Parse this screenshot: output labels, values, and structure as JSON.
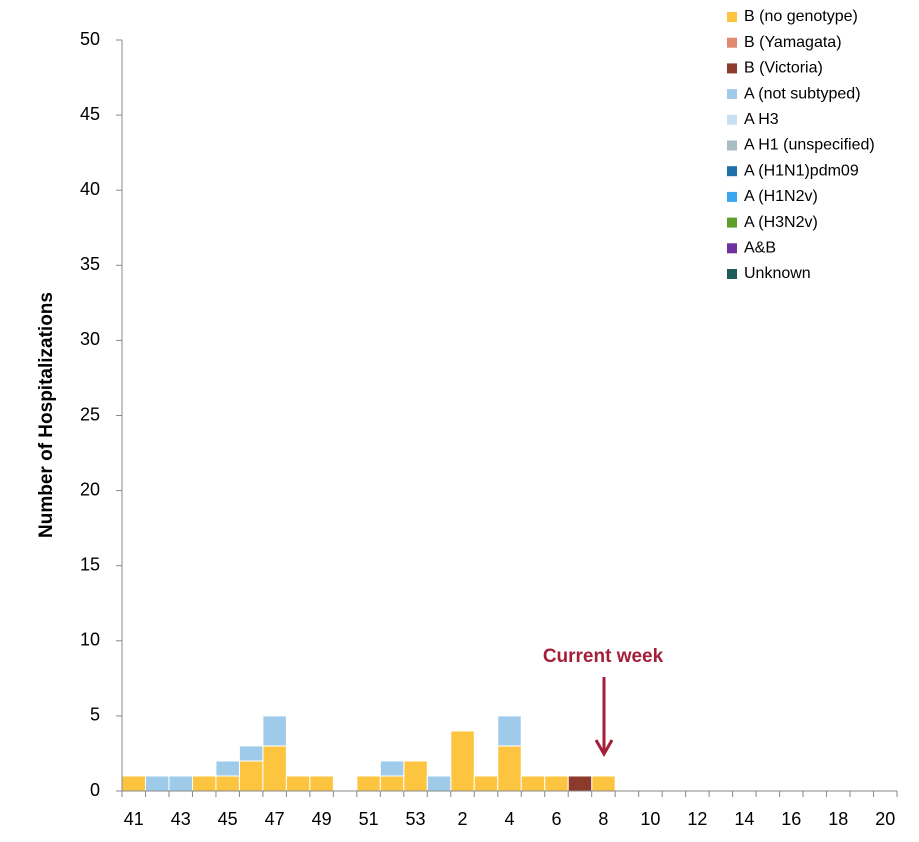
{
  "chart_data": {
    "type": "stacked_bar",
    "y_label": "Number of Hospitalizations",
    "annotation": "Current week",
    "categories": [
      "41",
      null,
      "43",
      null,
      "45",
      null,
      "47",
      null,
      "49",
      null,
      "51",
      null,
      "53",
      null,
      "2",
      null,
      "4",
      null,
      "6",
      null,
      "8",
      null,
      "10",
      null,
      "12",
      null,
      "14",
      null,
      "16",
      null,
      "18",
      null,
      "20"
    ],
    "ylim": [
      0,
      50
    ],
    "yticks": [
      0,
      5,
      10,
      15,
      20,
      25,
      30,
      35,
      40,
      45,
      50
    ],
    "series": [
      {
        "name": "B (no genotype)",
        "color": "#fdc53f",
        "values": [
          1,
          0,
          0,
          1,
          1,
          2,
          3,
          1,
          1,
          0,
          1,
          1,
          2,
          0,
          4,
          1,
          3,
          1,
          1,
          0,
          1,
          0,
          0,
          0,
          0,
          0,
          0,
          0,
          0,
          0,
          0,
          0,
          0
        ]
      },
      {
        "name": "B (Yamagata)",
        "color": "#e08a70",
        "values": [
          0,
          0,
          0,
          0,
          0,
          0,
          0,
          0,
          0,
          0,
          0,
          0,
          0,
          0,
          0,
          0,
          0,
          0,
          0,
          0,
          0,
          0,
          0,
          0,
          0,
          0,
          0,
          0,
          0,
          0,
          0,
          0,
          0
        ]
      },
      {
        "name": "B (Victoria)",
        "color": "#8c3a2b",
        "values": [
          0,
          0,
          0,
          0,
          0,
          0,
          0,
          0,
          0,
          0,
          0,
          0,
          0,
          0,
          0,
          0,
          0,
          0,
          0,
          1,
          0,
          0,
          0,
          0,
          0,
          0,
          0,
          0,
          0,
          0,
          0,
          0,
          0
        ]
      },
      {
        "name": "A (not subtyped)",
        "color": "#9ecbea",
        "values": [
          0,
          1,
          1,
          0,
          1,
          1,
          2,
          0,
          0,
          0,
          0,
          1,
          0,
          1,
          0,
          0,
          2,
          0,
          0,
          0,
          0,
          0,
          0,
          0,
          0,
          0,
          0,
          0,
          0,
          0,
          0,
          0,
          0
        ]
      },
      {
        "name": "A H3",
        "color": "#c6e1f3",
        "values": [
          0,
          0,
          0,
          0,
          0,
          0,
          0,
          0,
          0,
          0,
          0,
          0,
          0,
          0,
          0,
          0,
          0,
          0,
          0,
          0,
          0,
          0,
          0,
          0,
          0,
          0,
          0,
          0,
          0,
          0,
          0,
          0,
          0
        ]
      },
      {
        "name": "A H1 (unspecified)",
        "color": "#a8bcc2",
        "values": [
          0,
          0,
          0,
          0,
          0,
          0,
          0,
          0,
          0,
          0,
          0,
          0,
          0,
          0,
          0,
          0,
          0,
          0,
          0,
          0,
          0,
          0,
          0,
          0,
          0,
          0,
          0,
          0,
          0,
          0,
          0,
          0,
          0
        ]
      },
      {
        "name": "A (H1N1)pdm09",
        "color": "#1f6fa8",
        "values": [
          0,
          0,
          0,
          0,
          0,
          0,
          0,
          0,
          0,
          0,
          0,
          0,
          0,
          0,
          0,
          0,
          0,
          0,
          0,
          0,
          0,
          0,
          0,
          0,
          0,
          0,
          0,
          0,
          0,
          0,
          0,
          0,
          0
        ]
      },
      {
        "name": "A (H1N2v)",
        "color": "#3aa6f0",
        "values": [
          0,
          0,
          0,
          0,
          0,
          0,
          0,
          0,
          0,
          0,
          0,
          0,
          0,
          0,
          0,
          0,
          0,
          0,
          0,
          0,
          0,
          0,
          0,
          0,
          0,
          0,
          0,
          0,
          0,
          0,
          0,
          0,
          0
        ]
      },
      {
        "name": "A (H3N2v)",
        "color": "#5e9e2a",
        "values": [
          0,
          0,
          0,
          0,
          0,
          0,
          0,
          0,
          0,
          0,
          0,
          0,
          0,
          0,
          0,
          0,
          0,
          0,
          0,
          0,
          0,
          0,
          0,
          0,
          0,
          0,
          0,
          0,
          0,
          0,
          0,
          0,
          0
        ]
      },
      {
        "name": "A&B",
        "color": "#7030a0",
        "values": [
          0,
          0,
          0,
          0,
          0,
          0,
          0,
          0,
          0,
          0,
          0,
          0,
          0,
          0,
          0,
          0,
          0,
          0,
          0,
          0,
          0,
          0,
          0,
          0,
          0,
          0,
          0,
          0,
          0,
          0,
          0,
          0,
          0
        ]
      },
      {
        "name": "Unknown",
        "color": "#1e5b5b",
        "values": [
          0,
          0,
          0,
          0,
          0,
          0,
          0,
          0,
          0,
          0,
          0,
          0,
          0,
          0,
          0,
          0,
          0,
          0,
          0,
          0,
          0,
          0,
          0,
          0,
          0,
          0,
          0,
          0,
          0,
          0,
          0,
          0,
          0
        ]
      }
    ]
  }
}
